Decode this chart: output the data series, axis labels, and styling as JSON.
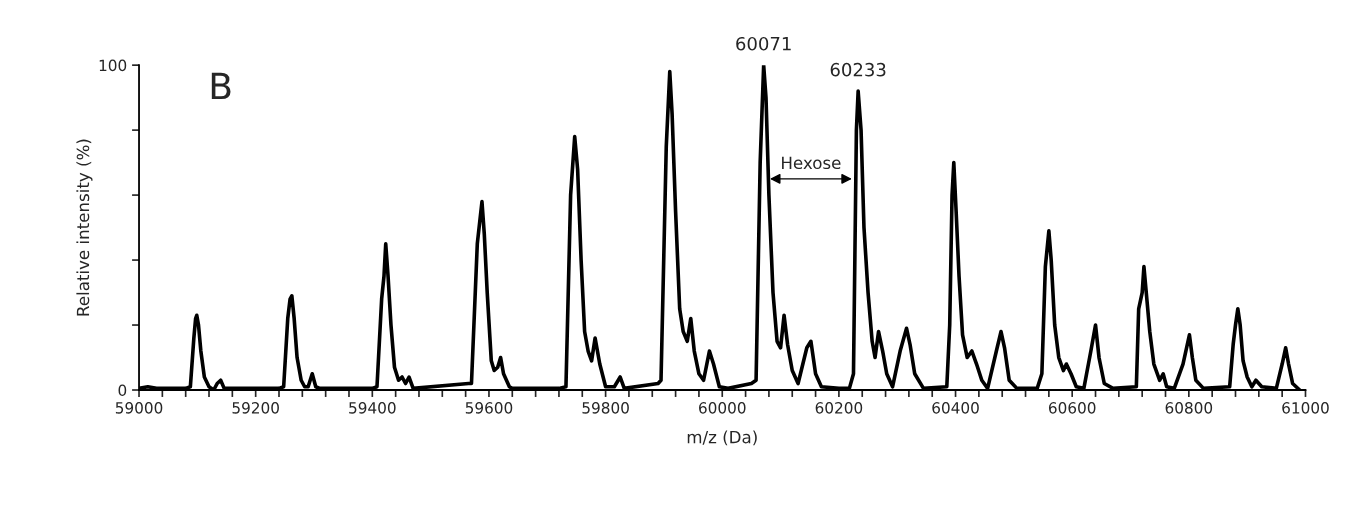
{
  "chart_data": {
    "type": "line",
    "xlabel": "m/z (Da)",
    "ylabel": "Relative intensity (%)",
    "x": [
      59000,
      59015,
      59030,
      59080,
      59088,
      59094,
      59097,
      59099,
      59102,
      59106,
      59112,
      59120,
      59128,
      59134,
      59140,
      59146,
      59240,
      59248,
      59255,
      59259,
      59262,
      59266,
      59271,
      59278,
      59284,
      59290,
      59297,
      59303,
      59310,
      59400,
      59408,
      59416,
      59420,
      59423,
      59427,
      59432,
      59438,
      59445,
      59451,
      59457,
      59463,
      59470,
      59565,
      59570,
      59580,
      59588,
      59592,
      59597,
      59604,
      59609,
      59615,
      59620,
      59625,
      59635,
      59640,
      59720,
      59732,
      59740,
      59747,
      59752,
      59758,
      59764,
      59770,
      59776,
      59782,
      59790,
      59800,
      59815,
      59825,
      59832,
      59890,
      59895,
      59904,
      59910,
      59914,
      59920,
      59927,
      59933,
      59940,
      59946,
      59952,
      59960,
      59968,
      59978,
      59985,
      59995,
      60010,
      60050,
      60058,
      60065,
      60071,
      60075,
      60080,
      60087,
      60094,
      60100,
      60106,
      60112,
      60120,
      60130,
      60145,
      60152,
      60160,
      60170,
      60200,
      60218,
      60225,
      60230,
      60233,
      60238,
      60243,
      60250,
      60257,
      60262,
      60268,
      60275,
      60282,
      60292,
      60305,
      60316,
      60322,
      60330,
      60345,
      60385,
      60390,
      60394,
      60397,
      60401,
      60406,
      60412,
      60420,
      60428,
      60436,
      60445,
      60455,
      60470,
      60478,
      60484,
      60492,
      60505,
      60540,
      60548,
      60554,
      60560,
      60564,
      60570,
      60577,
      60585,
      60590,
      60598,
      60607,
      60620,
      60632,
      60640,
      60646,
      60655,
      60670,
      60710,
      60714,
      60720,
      60723,
      60727,
      60733,
      60740,
      60750,
      60756,
      60762,
      60775,
      60790,
      60801,
      60806,
      60812,
      60825,
      60870,
      60876,
      60880,
      60884,
      60888,
      60893,
      60900,
      60908,
      60915,
      60925,
      60950,
      60960,
      60966,
      60971,
      60978,
      60990
    ],
    "series": [
      {
        "color": "#000000",
        "values": [
          0.5,
          1,
          0.5,
          0.5,
          1,
          16,
          22,
          23,
          20,
          12,
          4,
          1,
          0,
          2,
          3,
          0.5,
          0.5,
          1,
          22,
          28,
          29,
          22,
          10,
          3,
          1,
          1,
          5,
          1,
          0.5,
          0.5,
          1,
          28,
          35,
          45,
          35,
          20,
          7,
          3,
          4,
          2,
          4,
          0.5,
          2,
          2,
          45,
          58,
          48,
          30,
          9,
          6,
          7,
          10,
          5,
          1,
          0.5,
          0.5,
          1,
          60,
          78,
          68,
          40,
          18,
          12,
          9,
          16,
          8,
          1,
          1,
          4,
          0.5,
          2,
          3,
          75,
          98,
          85,
          55,
          25,
          18,
          15,
          22,
          12,
          5,
          3,
          12,
          8,
          1,
          0.5,
          2,
          3,
          70,
          100,
          90,
          60,
          30,
          15,
          13,
          23,
          14,
          6,
          2,
          13,
          15,
          5,
          1,
          0.5,
          0.5,
          5,
          80,
          92,
          80,
          50,
          30,
          15,
          10,
          18,
          12,
          5,
          1,
          12,
          19,
          14,
          5,
          0.5,
          1,
          20,
          60,
          70,
          55,
          35,
          17,
          10,
          12,
          8,
          3,
          0.5,
          12,
          18,
          13,
          3,
          0.5,
          0.5,
          5,
          38,
          49,
          40,
          20,
          10,
          6,
          8,
          5,
          1,
          0.5,
          12,
          20,
          10,
          2,
          0.5,
          1,
          25,
          30,
          38,
          30,
          18,
          8,
          3,
          5,
          1,
          0.5,
          8,
          17,
          10,
          3,
          0.5,
          1,
          14,
          20,
          25,
          20,
          9,
          4,
          1,
          3,
          1,
          0.5,
          8,
          13,
          8,
          2,
          0
        ]
      }
    ],
    "xlim": [
      59000,
      61000
    ],
    "xticks": [
      59000,
      {
        "value": 59040,
        "label": null
      },
      {
        "value": 59080,
        "label": null
      },
      {
        "value": 59120,
        "label": null
      },
      {
        "value": 59160,
        "label": null
      },
      59200,
      {
        "value": 59240,
        "label": null
      },
      {
        "value": 59280,
        "label": null
      },
      {
        "value": 59320,
        "label": null
      },
      {
        "value": 59360,
        "label": null
      },
      59400,
      {
        "value": 59440,
        "label": null
      },
      {
        "value": 59480,
        "label": null
      },
      {
        "value": 59520,
        "label": null
      },
      {
        "value": 59560,
        "label": null
      },
      59600,
      {
        "value": 59640,
        "label": null
      },
      {
        "value": 59680,
        "label": null
      },
      {
        "value": 59720,
        "label": null
      },
      {
        "value": 59760,
        "label": null
      },
      59800,
      {
        "value": 59840,
        "label": null
      },
      {
        "value": 59880,
        "label": null
      },
      {
        "value": 59920,
        "label": null
      },
      {
        "value": 59960,
        "label": null
      },
      60000,
      {
        "value": 60040,
        "label": null
      },
      {
        "value": 60080,
        "label": null
      },
      {
        "value": 60120,
        "label": null
      },
      {
        "value": 60160,
        "label": null
      },
      60200,
      {
        "value": 60240,
        "label": null
      },
      {
        "value": 60280,
        "label": null
      },
      {
        "value": 60320,
        "label": null
      },
      {
        "value": 60360,
        "label": null
      },
      60400,
      {
        "value": 60440,
        "label": null
      },
      {
        "value": 60480,
        "label": null
      },
      {
        "value": 60520,
        "label": null
      },
      {
        "value": 60560,
        "label": null
      },
      60600,
      {
        "value": 60640,
        "label": null
      },
      {
        "value": 60680,
        "label": null
      },
      {
        "value": 60720,
        "label": null
      },
      {
        "value": 60760,
        "label": null
      },
      60800,
      {
        "value": 60840,
        "label": null
      },
      {
        "value": 60880,
        "label": null
      },
      {
        "value": 60920,
        "label": null
      },
      {
        "value": 60960,
        "label": null
      },
      61000
    ],
    "ylim": [
      0,
      100
    ],
    "yticks": [
      0,
      {
        "value": 20,
        "label": null
      },
      {
        "value": 40,
        "label": null
      },
      {
        "value": 60,
        "label": null
      },
      {
        "value": 80,
        "label": null
      },
      100
    ],
    "grid": false,
    "legend": false,
    "marker": "none",
    "line_style": "solid",
    "annotations": [
      "B",
      {
        "text": "60071",
        "x": 60071,
        "y": 100
      },
      {
        "text": "60233",
        "x": 60233,
        "y": 92
      },
      "Hexose"
    ]
  }
}
